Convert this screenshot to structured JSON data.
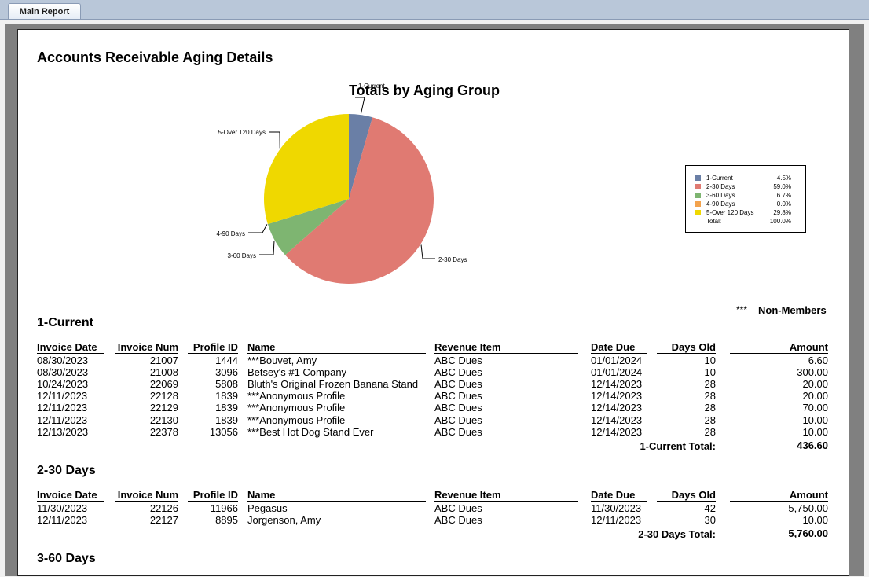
{
  "tab": {
    "label": "Main Report"
  },
  "report": {
    "title": "Accounts Receivable Aging Details"
  },
  "chart_data": {
    "type": "pie",
    "title": "Totals by Aging Group",
    "slices": [
      {
        "label": "1-Current",
        "value": 4.5,
        "pct": "4.5%",
        "color": "#6a7fa6"
      },
      {
        "label": "2-30 Days",
        "value": 59.0,
        "pct": "59.0%",
        "color": "#e07a72"
      },
      {
        "label": "3-60 Days",
        "value": 6.7,
        "pct": "6.7%",
        "color": "#7eb571"
      },
      {
        "label": "4-90 Days",
        "value": 0.0,
        "pct": "0.0%",
        "color": "#f3a34e"
      },
      {
        "label": "5-Over 120 Days",
        "value": 29.8,
        "pct": "29.8%",
        "color": "#efd800"
      }
    ],
    "total_label": "Total:",
    "total_pct": "100.0%",
    "legend_position": "right"
  },
  "non_members": {
    "mark": "***",
    "label": "Non-Members"
  },
  "columns": {
    "invoice_date": "Invoice Date",
    "invoice_num": "Invoice Num",
    "profile_id": "Profile ID",
    "name": "Name",
    "revenue_item": "Revenue Item",
    "date_due": "Date Due",
    "days_old": "Days Old",
    "amount": "Amount"
  },
  "groups": [
    {
      "title": "1-Current",
      "rows": [
        {
          "invoice_date": "08/30/2023",
          "invoice_num": "21007",
          "profile_id": "1444",
          "name": "***Bouvet, Amy",
          "revenue_item": "ABC Dues",
          "date_due": "01/01/2024",
          "days_old": "10",
          "amount": "6.60"
        },
        {
          "invoice_date": "08/30/2023",
          "invoice_num": "21008",
          "profile_id": "3096",
          "name": "Betsey's #1 Company",
          "revenue_item": "ABC Dues",
          "date_due": "01/01/2024",
          "days_old": "10",
          "amount": "300.00"
        },
        {
          "invoice_date": "10/24/2023",
          "invoice_num": "22069",
          "profile_id": "5808",
          "name": "Bluth's Original Frozen Banana Stand",
          "revenue_item": "ABC Dues",
          "date_due": "12/14/2023",
          "days_old": "28",
          "amount": "20.00"
        },
        {
          "invoice_date": "12/11/2023",
          "invoice_num": "22128",
          "profile_id": "1839",
          "name": "***Anonymous Profile",
          "revenue_item": "ABC Dues",
          "date_due": "12/14/2023",
          "days_old": "28",
          "amount": "20.00"
        },
        {
          "invoice_date": "12/11/2023",
          "invoice_num": "22129",
          "profile_id": "1839",
          "name": "***Anonymous Profile",
          "revenue_item": "ABC Dues",
          "date_due": "12/14/2023",
          "days_old": "28",
          "amount": "70.00"
        },
        {
          "invoice_date": "12/11/2023",
          "invoice_num": "22130",
          "profile_id": "1839",
          "name": "***Anonymous Profile",
          "revenue_item": "ABC Dues",
          "date_due": "12/14/2023",
          "days_old": "28",
          "amount": "10.00"
        },
        {
          "invoice_date": "12/13/2023",
          "invoice_num": "22378",
          "profile_id": "13056",
          "name": "***Best Hot Dog Stand Ever",
          "revenue_item": "ABC Dues",
          "date_due": "12/14/2023",
          "days_old": "28",
          "amount": "10.00"
        }
      ],
      "total_label": "1-Current Total:",
      "total_value": "436.60"
    },
    {
      "title": "2-30 Days",
      "rows": [
        {
          "invoice_date": "11/30/2023",
          "invoice_num": "22126",
          "profile_id": "11966",
          "name": "Pegasus",
          "revenue_item": "ABC Dues",
          "date_due": "11/30/2023",
          "days_old": "42",
          "amount": "5,750.00"
        },
        {
          "invoice_date": "12/11/2023",
          "invoice_num": "22127",
          "profile_id": "8895",
          "name": "Jorgenson, Amy",
          "revenue_item": "ABC Dues",
          "date_due": "12/11/2023",
          "days_old": "30",
          "amount": "10.00"
        }
      ],
      "total_label": "2-30 Days Total:",
      "total_value": "5,760.00"
    },
    {
      "title": "3-60 Days",
      "rows": []
    }
  ]
}
